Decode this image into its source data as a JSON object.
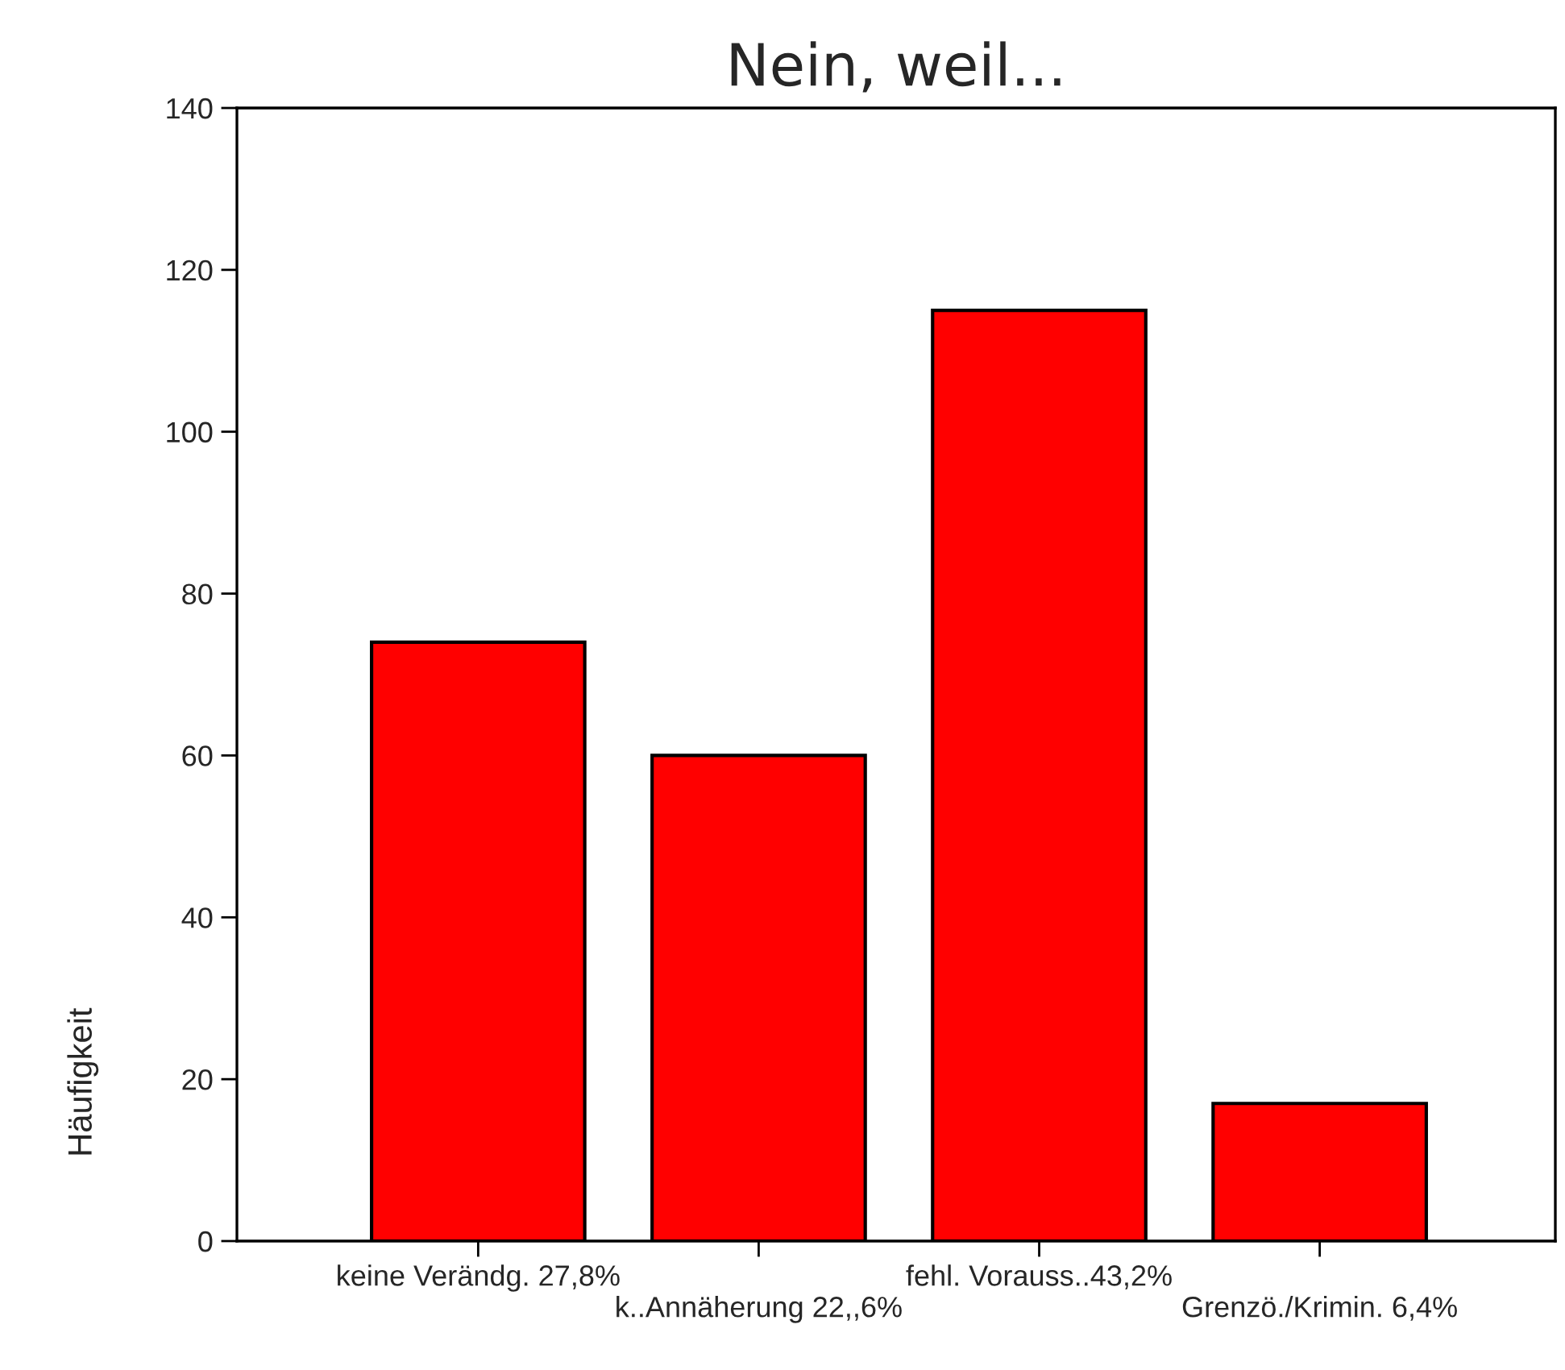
{
  "chart_data": {
    "type": "bar",
    "title": "Nein, weil...",
    "ylabel": "Häufigkeit",
    "categories": [
      "keine Verändg. 27,8%",
      "k..Annäherung 22,,6%",
      "fehl. Vorauss..43,2%",
      "Grenzö./Krimin. 6,4%"
    ],
    "values": [
      74,
      60,
      115,
      17
    ],
    "color": "#ff0000",
    "ylim": [
      0,
      140
    ],
    "yticks": [
      0,
      20,
      40,
      60,
      80,
      100,
      120,
      140
    ],
    "grid": false,
    "legend": false
  }
}
